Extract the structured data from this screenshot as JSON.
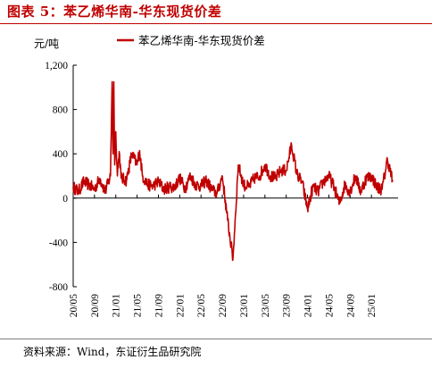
{
  "figure": {
    "title": "图表 5：苯乙烯华南-华东现货价差",
    "source": "资料来源：Wind，东证衍生品研究院"
  },
  "chart_data": {
    "type": "line",
    "ylabel": "元/吨",
    "ylim": [
      -800,
      1200
    ],
    "yticks": [
      -800,
      -400,
      0,
      400,
      800,
      1200
    ],
    "ytick_labels": [
      "-800",
      "-400",
      "0",
      "400",
      "800",
      "1,200"
    ],
    "xlim": [
      "2020-05",
      "2025-06"
    ],
    "xtick_labels": [
      "20/05",
      "20/09",
      "21/01",
      "21/05",
      "21/09",
      "22/01",
      "22/05",
      "22/09",
      "23/01",
      "23/05",
      "23/09",
      "24/01",
      "24/05",
      "24/09",
      "25/01"
    ],
    "legend": "top-center",
    "grid": false,
    "series": [
      {
        "name": "苯乙烯华南-华东现货价差",
        "color": "#c00000",
        "x": [
          "2020-05",
          "2020-06",
          "2020-07",
          "2020-08",
          "2020-09",
          "2020-10",
          "2020-11",
          "2020-12",
          "2020-12-10",
          "2020-12-15",
          "2020-12-20",
          "2020-12-25",
          "2021-01",
          "2021-01-10",
          "2021-01-20",
          "2021-02",
          "2021-03",
          "2021-04",
          "2021-05",
          "2021-05-15",
          "2021-06",
          "2021-07",
          "2021-08",
          "2021-09",
          "2021-10",
          "2021-11",
          "2021-12",
          "2022-01",
          "2022-02",
          "2022-03",
          "2022-04",
          "2022-05",
          "2022-06",
          "2022-07",
          "2022-08",
          "2022-09",
          "2022-10",
          "2022-11",
          "2022-11-15",
          "2022-12",
          "2023-01",
          "2023-02",
          "2023-03",
          "2023-04",
          "2023-05",
          "2023-06",
          "2023-07",
          "2023-08",
          "2023-09",
          "2023-10",
          "2023-11",
          "2023-12",
          "2024-01",
          "2024-02",
          "2024-03",
          "2024-04",
          "2024-05",
          "2024-06",
          "2024-07",
          "2024-08",
          "2024-09",
          "2024-10",
          "2024-11",
          "2024-12",
          "2025-01",
          "2025-02",
          "2025-03",
          "2025-04",
          "2025-05"
        ],
        "y": [
          100,
          60,
          150,
          120,
          80,
          180,
          60,
          200,
          1050,
          400,
          1050,
          300,
          600,
          200,
          420,
          180,
          160,
          400,
          300,
          430,
          200,
          120,
          110,
          150,
          80,
          100,
          100,
          180,
          90,
          200,
          120,
          110,
          160,
          80,
          40,
          200,
          -200,
          -550,
          -150,
          300,
          120,
          100,
          180,
          200,
          300,
          200,
          180,
          250,
          250,
          480,
          220,
          140,
          -100,
          100,
          60,
          150,
          200,
          100,
          -50,
          120,
          60,
          200,
          60,
          180,
          200,
          100,
          80,
          350,
          150
        ]
      }
    ]
  }
}
